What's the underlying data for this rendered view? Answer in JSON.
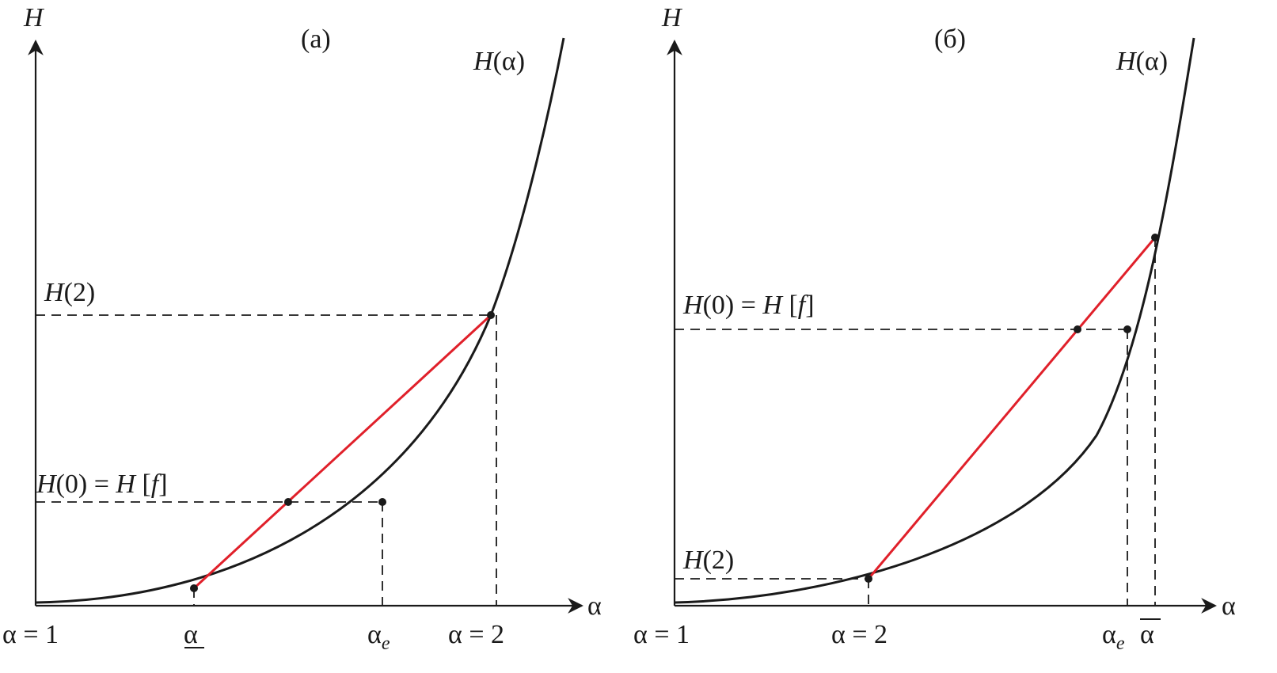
{
  "colors": {
    "curve": "#1a1a1a",
    "chord": "#e0202a"
  },
  "panel_a": {
    "tag": "(а)",
    "y_axis": "H",
    "x_axis": "α",
    "curve_label_italic": "H",
    "curve_label_rest": "(α)",
    "h2_italic": "H",
    "h2_rest": "(2)",
    "h0_i1": "H",
    "h0_mid": "(0) = ",
    "h0_i2": "H",
    "h0_mid2": " [",
    "h0_i3": "f",
    "h0_end": "]",
    "x_tick_1": "α = 1",
    "x_tick_lower": "α",
    "x_tick_e_base": "α",
    "x_tick_e_sub": "e",
    "x_tick_2": "α = 2"
  },
  "panel_b": {
    "tag": "(б)",
    "y_axis": "H",
    "x_axis": "α",
    "curve_label_italic": "H",
    "curve_label_rest": "(α)",
    "h0_i1": "H",
    "h0_mid": "(0) = ",
    "h0_i2": "H",
    "h0_mid2": " [",
    "h0_i3": "f",
    "h0_end": "]",
    "h2_italic": "H",
    "h2_rest": "(2)",
    "x_tick_1": "α = 1",
    "x_tick_2": "α = 2",
    "x_tick_e_base": "α",
    "x_tick_e_sub": "e",
    "x_tick_upper": "α"
  }
}
